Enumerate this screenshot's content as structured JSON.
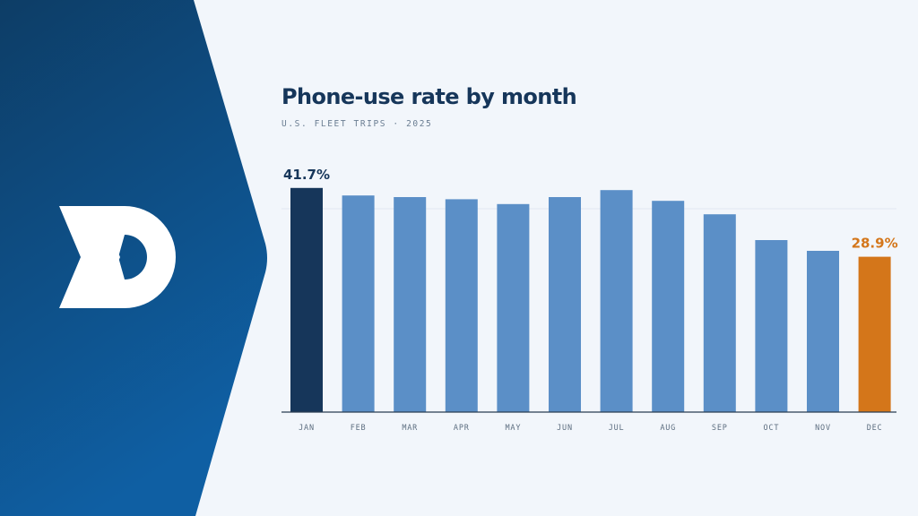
{
  "header": {
    "title": "Phone-use rate by month",
    "subtitle": "U.S. FLEET TRIPS · 2025"
  },
  "brand": {
    "logo_icon": "double-chevron-d-logo",
    "panel_color_top": "#0d3d66",
    "panel_color_bottom": "#0f5fa3"
  },
  "colors": {
    "bar_default": "#5b8fc7",
    "bar_highlight_first": "#16365a",
    "bar_highlight_last": "#d4761a"
  },
  "chart_data": {
    "type": "bar",
    "categories": [
      "JAN",
      "FEB",
      "MAR",
      "APR",
      "MAY",
      "JUN",
      "JUL",
      "AUG",
      "SEP",
      "OCT",
      "NOV",
      "DEC"
    ],
    "values": [
      41.7,
      40.3,
      40.0,
      39.6,
      38.7,
      40.0,
      41.3,
      39.3,
      36.8,
      32.0,
      30.0,
      28.9
    ],
    "data_labels": [
      {
        "index": 0,
        "text": "41.7%"
      },
      {
        "index": 11,
        "text": "28.9%"
      }
    ],
    "ylim": [
      0,
      42
    ],
    "grid": false,
    "legend": "none"
  }
}
